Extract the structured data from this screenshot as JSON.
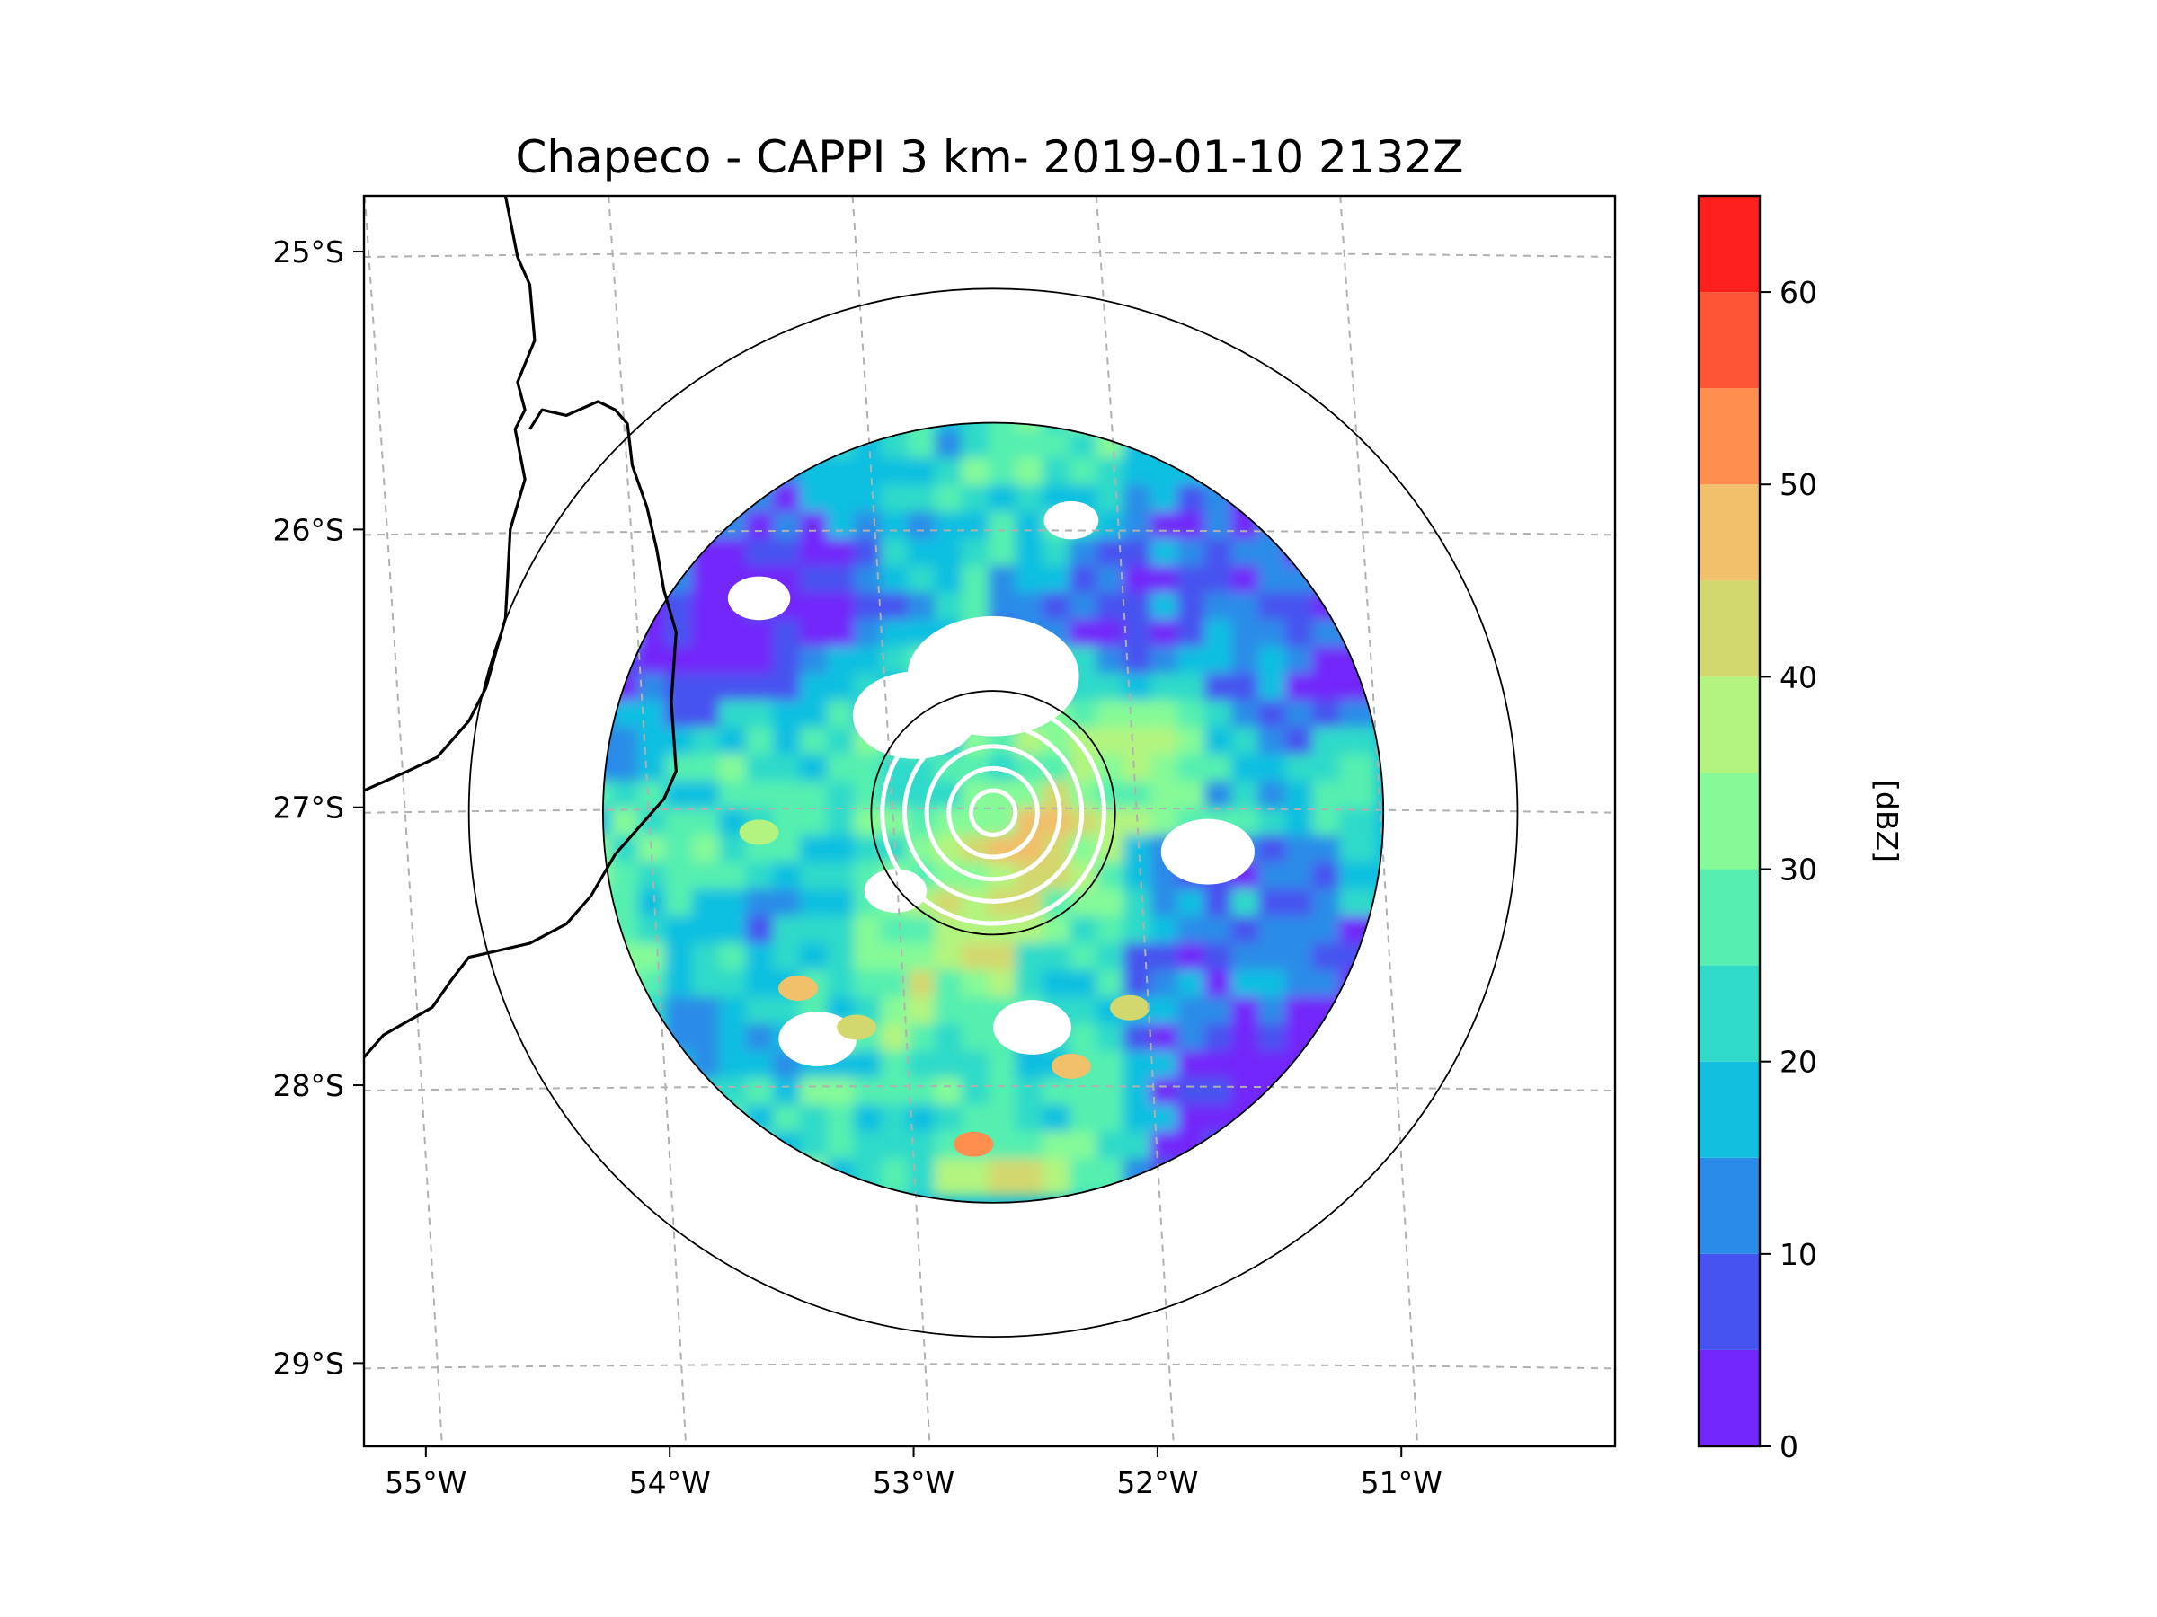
{
  "chart_data": {
    "type": "heatmap",
    "title": "Chapeco - CAPPI 3 km- 2019-01-10 2132Z",
    "xlabel": "",
    "ylabel": "",
    "x_range": [
      -55.18,
      -50.05
    ],
    "y_range": [
      -29.28,
      -24.78
    ],
    "x_ticks": [
      -55,
      -54,
      -53,
      -52,
      -51
    ],
    "x_tick_labels": [
      "55°W",
      "54°W",
      "53°W",
      "52°W",
      "51°W"
    ],
    "y_ticks": [
      -25,
      -26,
      -27,
      -28,
      -29
    ],
    "y_tick_labels": [
      "25°S",
      "26°S",
      "27°S",
      "28°S",
      "29°S"
    ],
    "grid": true,
    "radar_center": {
      "lon": -52.6,
      "lat": -27.0
    },
    "range_rings_deg": [
      0.5,
      1.6,
      2.15
    ],
    "colorbar": {
      "label": "[dBZ]",
      "min": 0,
      "max": 65,
      "step": 5,
      "tick_values": [
        0,
        10,
        20,
        30,
        40,
        50,
        60
      ],
      "tick_labels": [
        "0",
        "10",
        "20",
        "30",
        "40",
        "50",
        "60"
      ],
      "colors": [
        "#7226fa",
        "#4653f0",
        "#2a8ce8",
        "#11bfe1",
        "#2fdac9",
        "#54efb0",
        "#85fa97",
        "#b2f47f",
        "#d3d86e",
        "#f0c06b",
        "#ff8e4f",
        "#ff5537",
        "#ff1f1c"
      ]
    },
    "coastline": {
      "border_a": [
        [
          -54.6,
          -24.78
        ],
        [
          -54.55,
          -25.0
        ],
        [
          -54.5,
          -25.1
        ],
        [
          -54.48,
          -25.3
        ],
        [
          -54.55,
          -25.45
        ],
        [
          -54.52,
          -25.55
        ],
        [
          -54.56,
          -25.62
        ],
        [
          -54.52,
          -25.8
        ],
        [
          -54.58,
          -25.98
        ],
        [
          -54.6,
          -26.3
        ],
        [
          -54.68,
          -26.55
        ],
        [
          -54.75,
          -26.67
        ],
        [
          -54.88,
          -26.8
        ],
        [
          -55.0,
          -26.85
        ],
        [
          -55.18,
          -26.92
        ]
      ],
      "border_b": [
        [
          -54.5,
          -25.62
        ],
        [
          -54.45,
          -25.55
        ],
        [
          -54.35,
          -25.57
        ],
        [
          -54.22,
          -25.52
        ],
        [
          -54.15,
          -25.55
        ],
        [
          -54.1,
          -25.6
        ],
        [
          -54.08,
          -25.75
        ],
        [
          -54.02,
          -25.9
        ],
        [
          -53.98,
          -26.05
        ],
        [
          -53.95,
          -26.2
        ],
        [
          -53.9,
          -26.35
        ],
        [
          -53.92,
          -26.6
        ],
        [
          -53.9,
          -26.85
        ],
        [
          -53.95,
          -26.95
        ],
        [
          -54.05,
          -27.05
        ],
        [
          -54.15,
          -27.15
        ],
        [
          -54.25,
          -27.3
        ],
        [
          -54.35,
          -27.4
        ],
        [
          -54.5,
          -27.47
        ],
        [
          -54.65,
          -27.5
        ],
        [
          -54.75,
          -27.52
        ],
        [
          -54.82,
          -27.6
        ],
        [
          -54.9,
          -27.7
        ],
        [
          -55.0,
          -27.75
        ],
        [
          -55.1,
          -27.8
        ],
        [
          -55.18,
          -27.88
        ]
      ]
    },
    "echo_summary": "Radar reflectivity field covering most of the 1.6° ring; dominant values 10–35 dBZ, weak echoes (0–10 dBZ) along the northern and eastern sectors, isolated cores of 40–50 dBZ to the south-west and south."
  }
}
